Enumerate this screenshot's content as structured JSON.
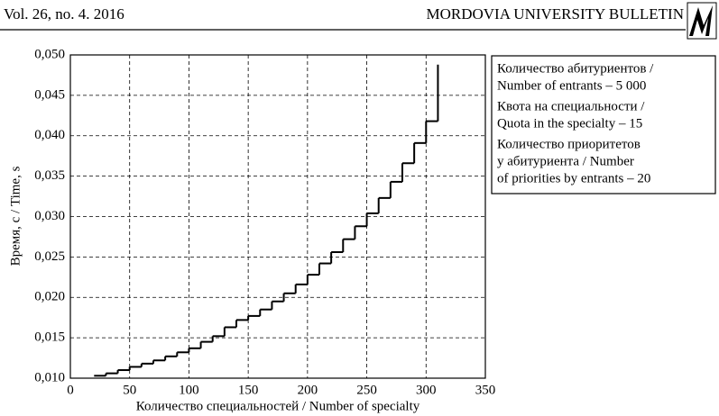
{
  "header": {
    "left": "Vol. 26, no. 4. 2016",
    "right": "MORDOVIA UNIVERSITY BULLETIN"
  },
  "chart_data": {
    "type": "step",
    "xlabel": "Количество специальностей / Number of specialty",
    "ylabel": "Время, с / Time, s",
    "annotations": [
      [
        "Количество абитуриентов /",
        "Number of entrants – 5 000"
      ],
      [
        "Квота на специальности /",
        "Quota in the specialty – 15"
      ],
      [
        "Количество приоритетов",
        "у абитуриента / Number",
        "of priorities by entrants – 20"
      ]
    ],
    "x": [
      20,
      30,
      40,
      50,
      60,
      70,
      80,
      90,
      100,
      110,
      120,
      130,
      140,
      150,
      160,
      170,
      180,
      190,
      200,
      210,
      220,
      230,
      240,
      250,
      260,
      270,
      280,
      290,
      300,
      310
    ],
    "values": [
      0.0103,
      0.0106,
      0.011,
      0.0114,
      0.0118,
      0.0122,
      0.0127,
      0.0132,
      0.0137,
      0.0145,
      0.0152,
      0.0163,
      0.0172,
      0.0177,
      0.0185,
      0.0195,
      0.0205,
      0.0216,
      0.0228,
      0.0242,
      0.0256,
      0.0272,
      0.0288,
      0.0304,
      0.0323,
      0.0343,
      0.0366,
      0.0391,
      0.0418,
      0.045
    ],
    "end_value": 0.0488,
    "color": "#000000",
    "xlim": [
      0,
      350
    ],
    "xticks": [
      0,
      50,
      100,
      150,
      200,
      250,
      300,
      350
    ],
    "ylim": [
      0.01,
      0.05
    ],
    "yticks": [
      {
        "value": 0.01,
        "label": "0,010"
      },
      {
        "value": 0.015,
        "label": "0,015"
      },
      {
        "value": 0.02,
        "label": "0,020"
      },
      {
        "value": 0.025,
        "label": "0,025"
      },
      {
        "value": 0.03,
        "label": "0,030"
      },
      {
        "value": 0.035,
        "label": "0,035"
      },
      {
        "value": 0.04,
        "label": "0,040"
      },
      {
        "value": 0.045,
        "label": "0,045"
      },
      {
        "value": 0.05,
        "label": "0,050"
      }
    ],
    "grid": true
  }
}
